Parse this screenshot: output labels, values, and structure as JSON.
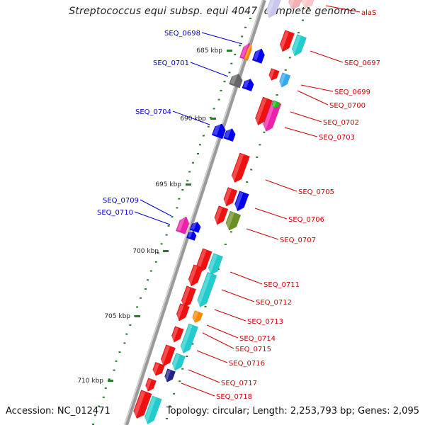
{
  "title": "Streptococcus equi subsp. equi 4047, complete genome",
  "footer": {
    "accession": "Accession: NC_012471",
    "topology": "Topology: circular; Length: 2,253,793 bp; Genes: 2,095"
  },
  "colors": {
    "backbone": "#8c8c8c",
    "forward_label": "#0000cc",
    "reverse_label": "#cc0000",
    "tick": "#2a7a2a",
    "red": "#ee1111",
    "blue": "#0000ee",
    "cyan": "#22cccc",
    "magenta": "#ee22aa",
    "orange": "#ff8800",
    "olive": "#6b8e23",
    "green": "#22bb22",
    "gray": "#666666",
    "navy": "#222288"
  },
  "kbp_ticks": [
    "685 kbp",
    "690 kbp",
    "695 kbp",
    "700 kbp",
    "705 kbp",
    "710 kbp"
  ],
  "forward_labels": [
    "SEQ_0698",
    "SEQ_0701",
    "SEQ_0704",
    "SEQ_0709",
    "SEQ_0710"
  ],
  "reverse_labels": [
    "alaS",
    "SEQ_0697",
    "SEQ_0699",
    "SEQ_0700",
    "SEQ_0702",
    "SEQ_0703",
    "SEQ_0705",
    "SEQ_0706",
    "SEQ_0707",
    "SEQ_0711",
    "SEQ_0712",
    "SEQ_0713",
    "SEQ_0714",
    "SEQ_0715",
    "SEQ_0716",
    "SEQ_0717",
    "SEQ_0718"
  ]
}
